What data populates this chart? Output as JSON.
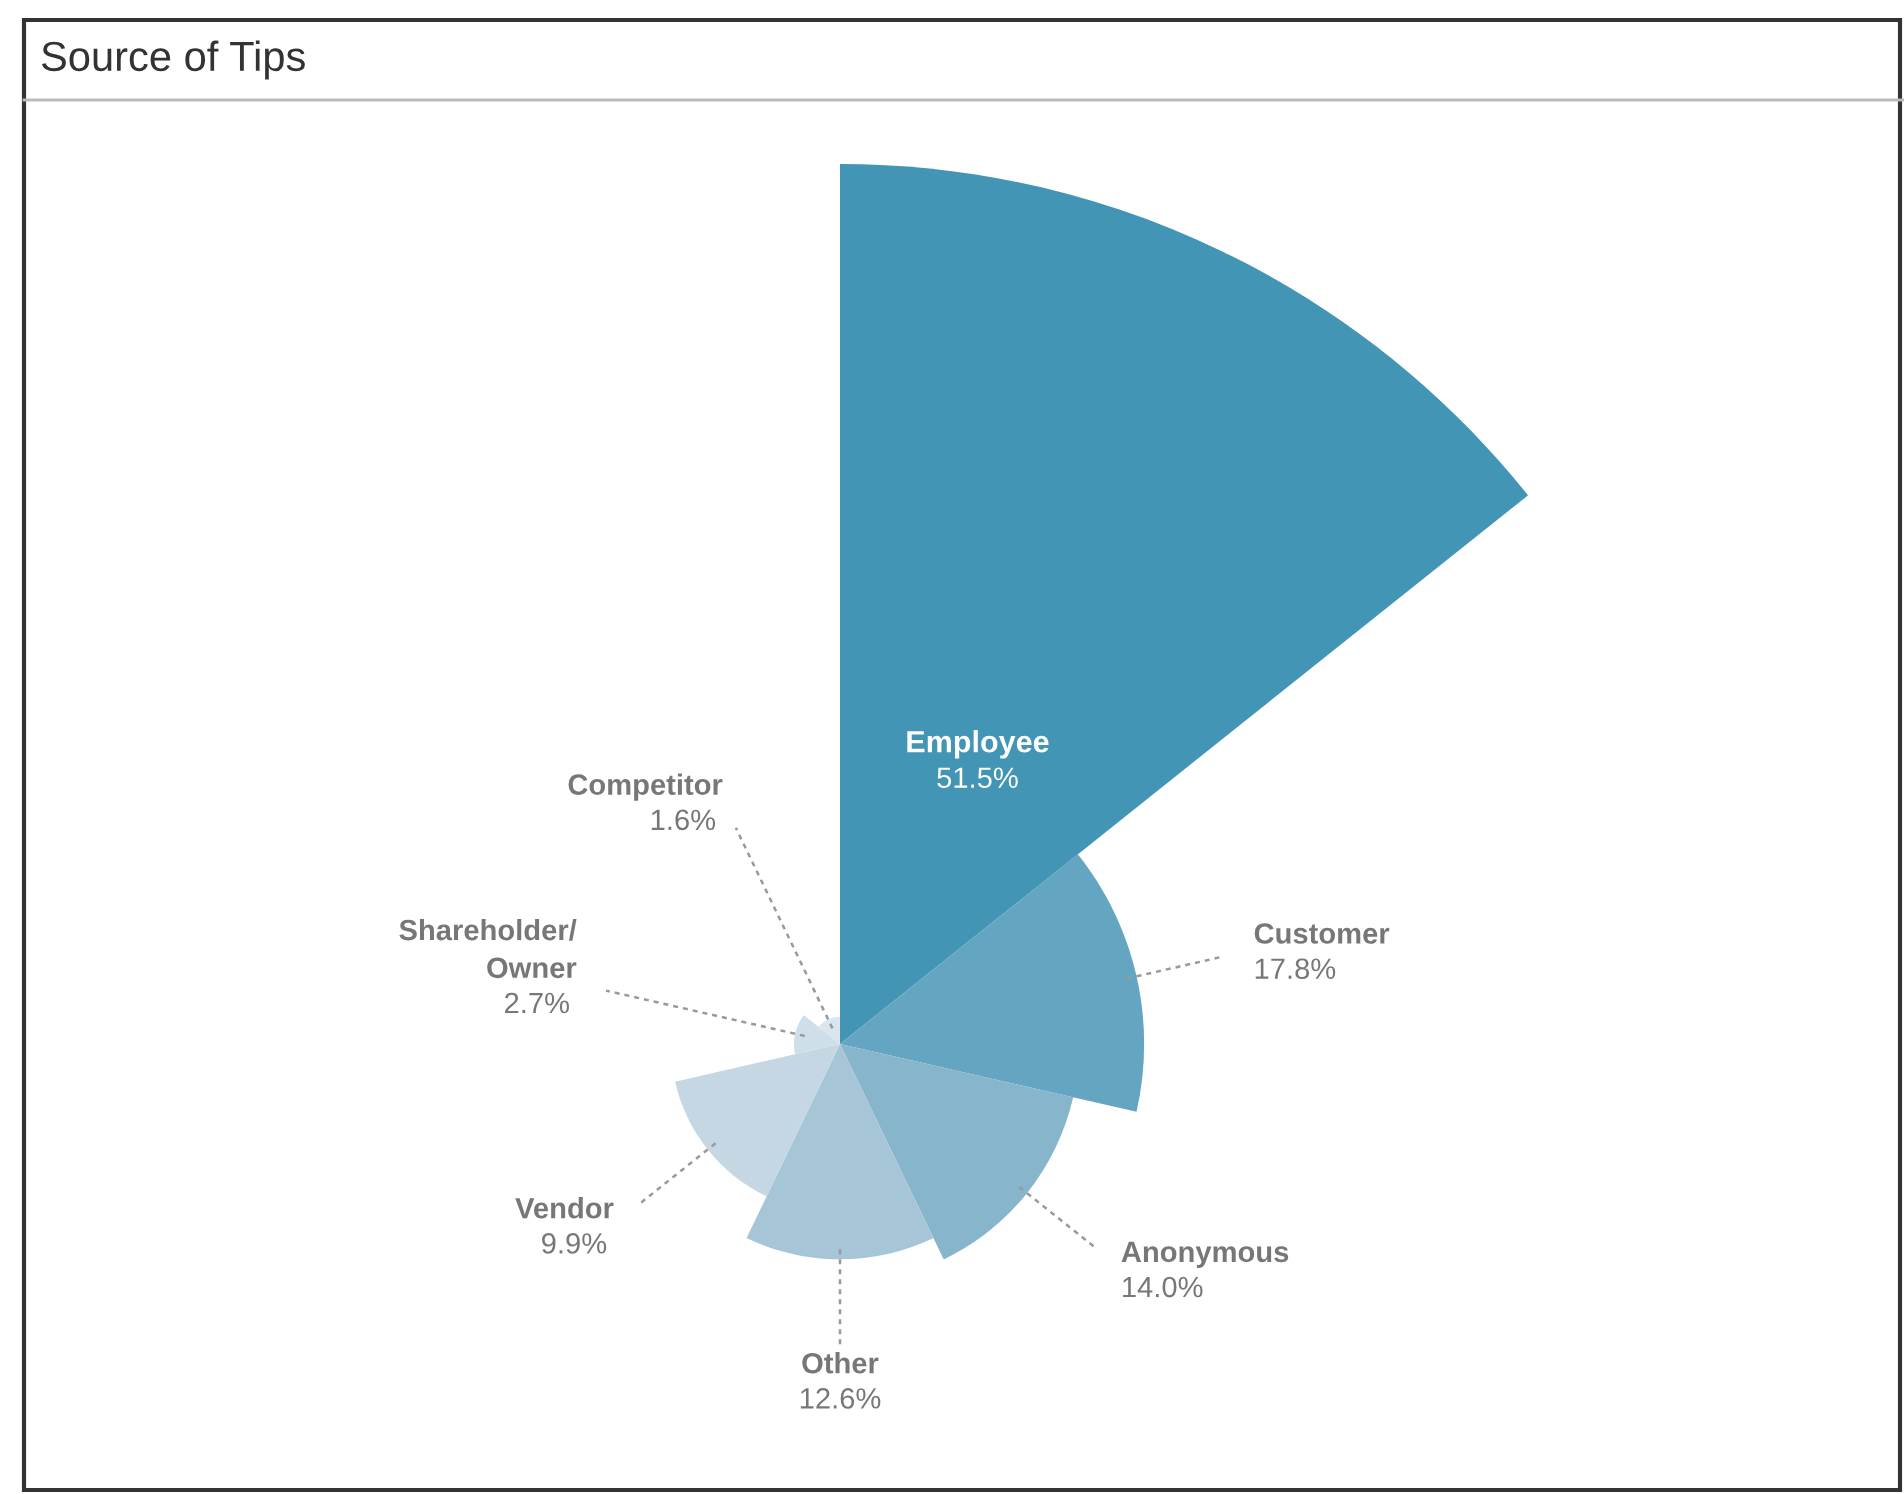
{
  "chart_data": {
    "type": "other",
    "title": "Source of Tips",
    "categories": [
      "Employee",
      "Customer",
      "Anonymous",
      "Other",
      "Vendor",
      "Shareholder/\nOwner",
      "Competitor"
    ],
    "values": [
      51.5,
      17.8,
      14.0,
      12.6,
      9.9,
      2.7,
      1.6
    ],
    "colors": [
      "#4395b5",
      "#64a5c1",
      "#86b5cc",
      "#a6c6d8",
      "#c4d7e3",
      "#cfdfe9",
      "#dae6ee"
    ],
    "value_labels": [
      "51.5%",
      "17.8%",
      "14.0%",
      "12.6%",
      "9.9%",
      "2.7%",
      "1.6%"
    ]
  }
}
